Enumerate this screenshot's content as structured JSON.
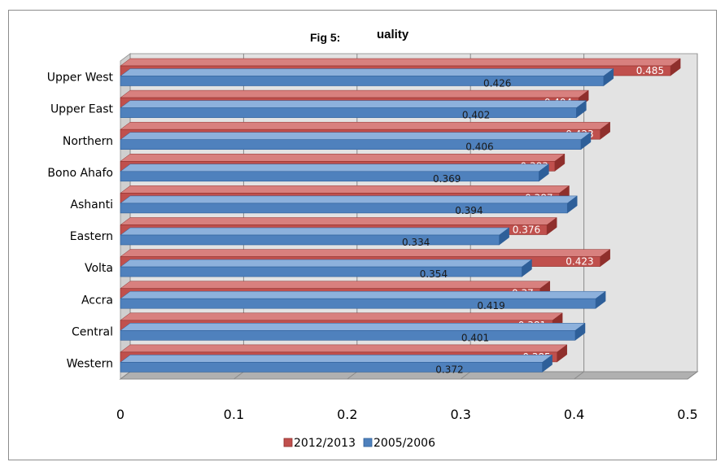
{
  "colors": {
    "series_2012": "#c0504d",
    "series_2012_dark": "#8f2f2c",
    "series_2012_top": "#d8807e",
    "series_2005": "#4f81bd",
    "series_2005_dark": "#2e5f99",
    "series_2005_top": "#8db1dc",
    "wall": "#e3e3e3",
    "floor": "#b0b0b0"
  },
  "chart_data": {
    "type": "bar",
    "orientation": "horizontal",
    "title_prefix": "Fig 5:",
    "title_rest": "uality",
    "categories": [
      "Upper West",
      "Upper East",
      "Northern",
      "Bono Ahafo",
      "Ashanti",
      "Eastern",
      "Volta",
      "Accra",
      "Central",
      "Western"
    ],
    "series": [
      {
        "name": "2012/2013",
        "values": [
          0.485,
          0.404,
          0.423,
          0.383,
          0.387,
          0.376,
          0.423,
          0.37,
          0.381,
          0.385
        ],
        "labels": [
          "0.485",
          "0.404",
          "0.423",
          "0.383",
          "0.387",
          "0.376",
          "0.423",
          "0.37",
          "0.381",
          "0.385"
        ]
      },
      {
        "name": "2005/2006",
        "values": [
          0.426,
          0.402,
          0.406,
          0.369,
          0.394,
          0.334,
          0.354,
          0.419,
          0.401,
          0.372
        ],
        "labels": [
          "0.426",
          "0.402",
          "0.406",
          "0.369",
          "0.394",
          "0.334",
          "0.354",
          "0.419",
          "0.401",
          "0.372"
        ]
      }
    ],
    "xlim": [
      0,
      0.5
    ],
    "xticks": [
      "0",
      "0.1",
      "0.2",
      "0.3",
      "0.4",
      "0.5"
    ],
    "gridlines": true,
    "legend_position": "bottom"
  }
}
